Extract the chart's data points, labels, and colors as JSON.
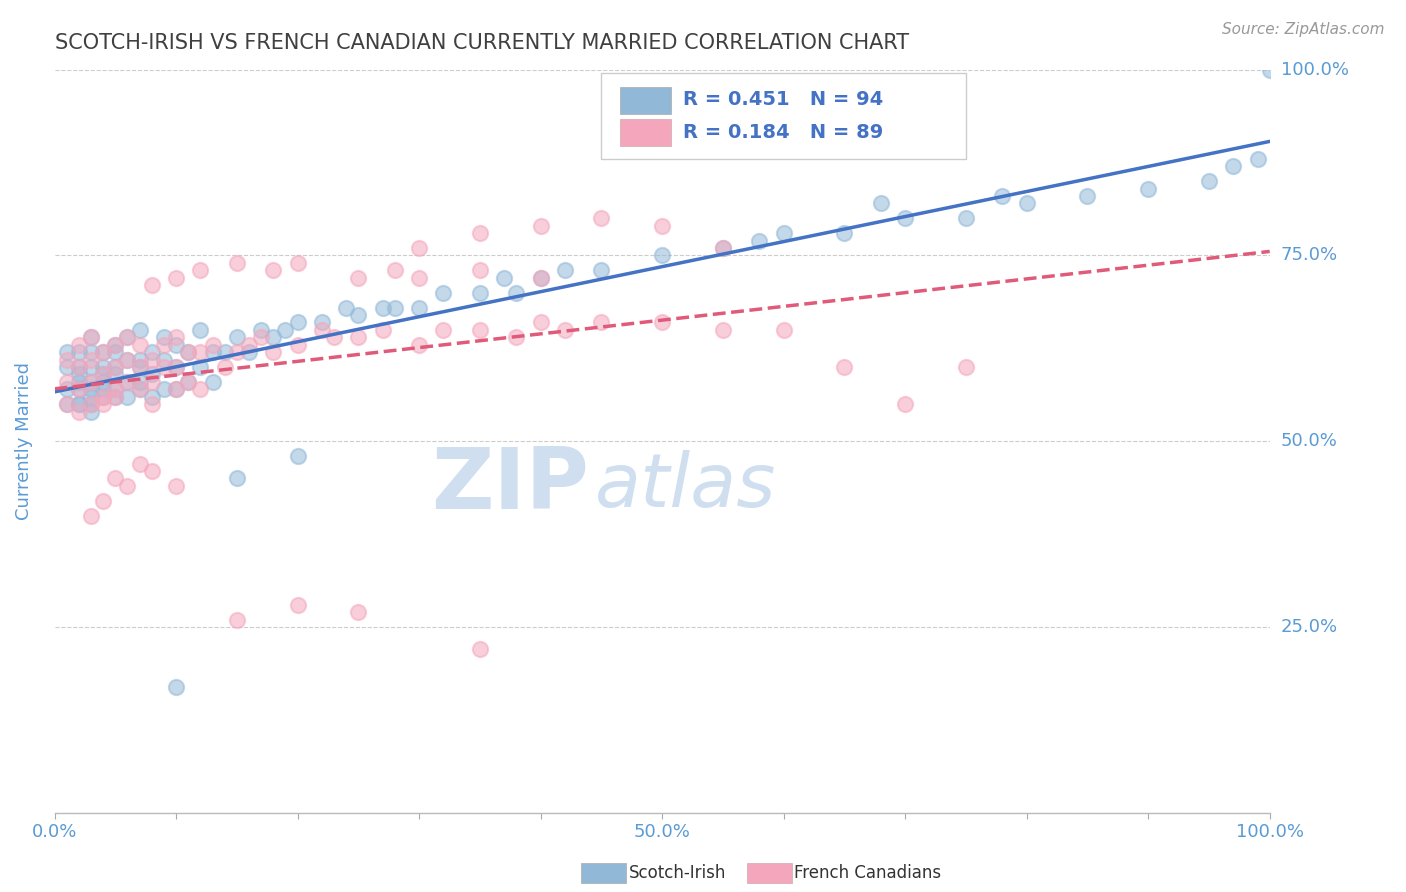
{
  "title": "SCOTCH-IRISH VS FRENCH CANADIAN CURRENTLY MARRIED CORRELATION CHART",
  "source_text": "Source: ZipAtlas.com",
  "ylabel": "Currently Married",
  "x_min": 0.0,
  "x_max": 1.0,
  "y_min": 0.0,
  "y_max": 1.0,
  "blue_R": 0.451,
  "blue_N": 94,
  "pink_R": 0.184,
  "pink_N": 89,
  "blue_color": "#92b8d8",
  "pink_color": "#f4a7bc",
  "blue_line_color": "#4472c4",
  "pink_line_color": "#e05a7a",
  "title_color": "#404040",
  "axis_label_color": "#5b9bd5",
  "grid_color": "#cccccc",
  "watermark_color": "#d0dff0",
  "legend_label_color": "#4472c4",
  "blue_x": [
    0.01,
    0.01,
    0.01,
    0.01,
    0.02,
    0.02,
    0.02,
    0.02,
    0.02,
    0.02,
    0.02,
    0.03,
    0.03,
    0.03,
    0.03,
    0.03,
    0.03,
    0.03,
    0.03,
    0.04,
    0.04,
    0.04,
    0.04,
    0.04,
    0.04,
    0.05,
    0.05,
    0.05,
    0.05,
    0.05,
    0.05,
    0.06,
    0.06,
    0.06,
    0.06,
    0.07,
    0.07,
    0.07,
    0.07,
    0.07,
    0.08,
    0.08,
    0.08,
    0.09,
    0.09,
    0.09,
    0.1,
    0.1,
    0.1,
    0.11,
    0.11,
    0.12,
    0.12,
    0.13,
    0.13,
    0.14,
    0.15,
    0.16,
    0.17,
    0.18,
    0.19,
    0.2,
    0.22,
    0.24,
    0.25,
    0.27,
    0.3,
    0.32,
    0.35,
    0.37,
    0.4,
    0.42,
    0.45,
    0.5,
    0.55,
    0.58,
    0.6,
    0.65,
    0.7,
    0.75,
    0.8,
    0.85,
    0.9,
    0.95,
    0.97,
    0.99,
    1.0,
    0.68,
    0.78,
    0.38,
    0.28,
    0.2,
    0.15,
    0.1
  ],
  "blue_y": [
    0.55,
    0.57,
    0.6,
    0.62,
    0.55,
    0.58,
    0.6,
    0.62,
    0.55,
    0.57,
    0.59,
    0.54,
    0.57,
    0.6,
    0.55,
    0.58,
    0.56,
    0.62,
    0.64,
    0.57,
    0.59,
    0.62,
    0.56,
    0.6,
    0.58,
    0.57,
    0.6,
    0.63,
    0.56,
    0.59,
    0.62,
    0.58,
    0.61,
    0.64,
    0.56,
    0.58,
    0.61,
    0.65,
    0.57,
    0.6,
    0.59,
    0.62,
    0.56,
    0.61,
    0.64,
    0.57,
    0.6,
    0.63,
    0.57,
    0.62,
    0.58,
    0.6,
    0.65,
    0.62,
    0.58,
    0.62,
    0.64,
    0.62,
    0.65,
    0.64,
    0.65,
    0.66,
    0.66,
    0.68,
    0.67,
    0.68,
    0.68,
    0.7,
    0.7,
    0.72,
    0.72,
    0.73,
    0.73,
    0.75,
    0.76,
    0.77,
    0.78,
    0.78,
    0.8,
    0.8,
    0.82,
    0.83,
    0.84,
    0.85,
    0.87,
    0.88,
    1.0,
    0.82,
    0.83,
    0.7,
    0.68,
    0.48,
    0.45,
    0.17
  ],
  "pink_x": [
    0.01,
    0.01,
    0.01,
    0.02,
    0.02,
    0.02,
    0.02,
    0.03,
    0.03,
    0.03,
    0.03,
    0.04,
    0.04,
    0.04,
    0.04,
    0.05,
    0.05,
    0.05,
    0.05,
    0.06,
    0.06,
    0.06,
    0.07,
    0.07,
    0.07,
    0.08,
    0.08,
    0.08,
    0.09,
    0.09,
    0.1,
    0.1,
    0.1,
    0.11,
    0.11,
    0.12,
    0.12,
    0.13,
    0.14,
    0.15,
    0.16,
    0.17,
    0.18,
    0.2,
    0.22,
    0.23,
    0.25,
    0.27,
    0.3,
    0.32,
    0.35,
    0.38,
    0.4,
    0.42,
    0.45,
    0.5,
    0.55,
    0.6,
    0.65,
    0.7,
    0.75,
    0.3,
    0.35,
    0.4,
    0.45,
    0.5,
    0.55,
    0.08,
    0.1,
    0.12,
    0.15,
    0.18,
    0.2,
    0.25,
    0.28,
    0.3,
    0.35,
    0.4,
    0.05,
    0.07,
    0.03,
    0.04,
    0.06,
    0.08,
    0.1,
    0.15,
    0.2,
    0.25,
    0.35
  ],
  "pink_y": [
    0.55,
    0.58,
    0.61,
    0.54,
    0.57,
    0.6,
    0.63,
    0.55,
    0.58,
    0.61,
    0.64,
    0.56,
    0.59,
    0.62,
    0.55,
    0.57,
    0.6,
    0.63,
    0.56,
    0.58,
    0.61,
    0.64,
    0.57,
    0.6,
    0.63,
    0.58,
    0.61,
    0.55,
    0.6,
    0.63,
    0.57,
    0.6,
    0.64,
    0.62,
    0.58,
    0.62,
    0.57,
    0.63,
    0.6,
    0.62,
    0.63,
    0.64,
    0.62,
    0.63,
    0.65,
    0.64,
    0.64,
    0.65,
    0.63,
    0.65,
    0.65,
    0.64,
    0.66,
    0.65,
    0.66,
    0.66,
    0.65,
    0.65,
    0.6,
    0.55,
    0.6,
    0.76,
    0.78,
    0.79,
    0.8,
    0.79,
    0.76,
    0.71,
    0.72,
    0.73,
    0.74,
    0.73,
    0.74,
    0.72,
    0.73,
    0.72,
    0.73,
    0.72,
    0.45,
    0.47,
    0.4,
    0.42,
    0.44,
    0.46,
    0.44,
    0.26,
    0.28,
    0.27,
    0.22
  ]
}
